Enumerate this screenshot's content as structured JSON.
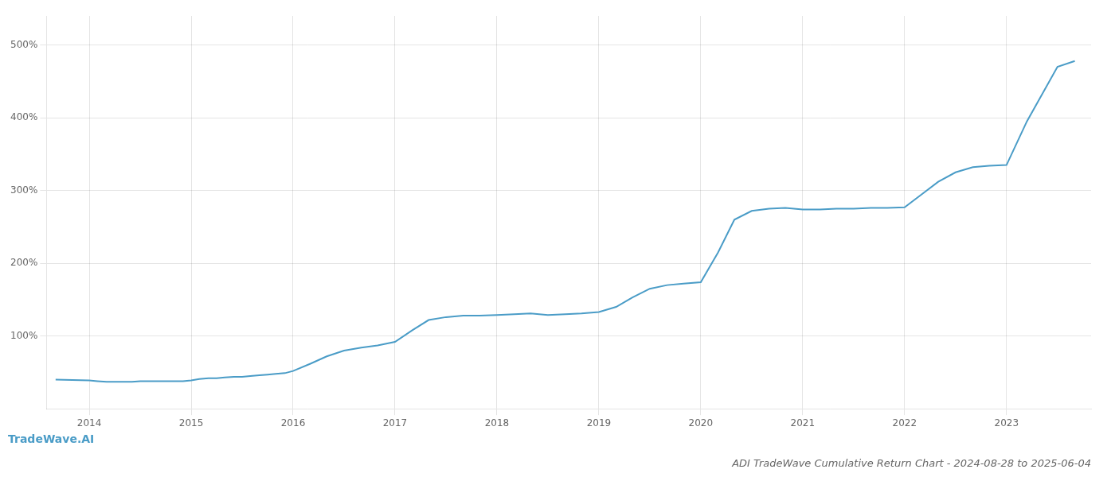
{
  "chart_data": {
    "type": "line",
    "title": "ADI TradeWave Cumulative Return Chart - 2024-08-28 to 2025-06-04",
    "annotations": [
      "TradeWave.AI"
    ],
    "color": "#4a9cc7",
    "grid": true,
    "x": [
      2013.67,
      2014.0,
      2014.08,
      2014.17,
      2014.25,
      2014.33,
      2014.42,
      2014.5,
      2014.58,
      2014.67,
      2014.75,
      2014.83,
      2014.92,
      2015.0,
      2015.08,
      2015.17,
      2015.25,
      2015.33,
      2015.42,
      2015.5,
      2015.58,
      2015.67,
      2015.75,
      2015.83,
      2015.92,
      2016.0,
      2016.17,
      2016.33,
      2016.5,
      2016.67,
      2016.83,
      2017.0,
      2017.17,
      2017.33,
      2017.5,
      2017.67,
      2017.83,
      2018.0,
      2018.17,
      2018.33,
      2018.5,
      2018.67,
      2018.83,
      2019.0,
      2019.17,
      2019.33,
      2019.5,
      2019.67,
      2019.83,
      2020.0,
      2020.17,
      2020.33,
      2020.5,
      2020.67,
      2020.83,
      2021.0,
      2021.17,
      2021.33,
      2021.5,
      2021.67,
      2021.83,
      2022.0,
      2022.17,
      2022.33,
      2022.5,
      2022.67,
      2022.83,
      2023.0,
      2023.2,
      2023.5,
      2023.67
    ],
    "values": [
      40,
      39,
      38,
      37,
      37,
      37,
      37,
      38,
      38,
      38,
      38,
      38,
      38,
      39,
      41,
      42,
      42,
      43,
      44,
      44,
      45,
      46,
      47,
      48,
      49,
      52,
      62,
      72,
      80,
      84,
      87,
      92,
      108,
      122,
      126,
      128,
      128,
      129,
      130,
      131,
      129,
      130,
      131,
      133,
      140,
      153,
      165,
      170,
      172,
      174,
      215,
      260,
      272,
      275,
      276,
      274,
      274,
      275,
      275,
      276,
      276,
      277,
      295,
      312,
      325,
      332,
      334,
      335,
      395,
      470,
      478
    ],
    "xlim": [
      2013.58,
      2023.83
    ],
    "xticks": [
      2014,
      2015,
      2016,
      2017,
      2018,
      2019,
      2020,
      2021,
      2022,
      2023
    ],
    "ylim": [
      0,
      540
    ],
    "yticks": [
      {
        "value": 100,
        "label": "100%"
      },
      {
        "value": 200,
        "label": "200%"
      },
      {
        "value": 300,
        "label": "300%"
      },
      {
        "value": 400,
        "label": "400%"
      },
      {
        "value": 500,
        "label": "500%"
      }
    ]
  }
}
